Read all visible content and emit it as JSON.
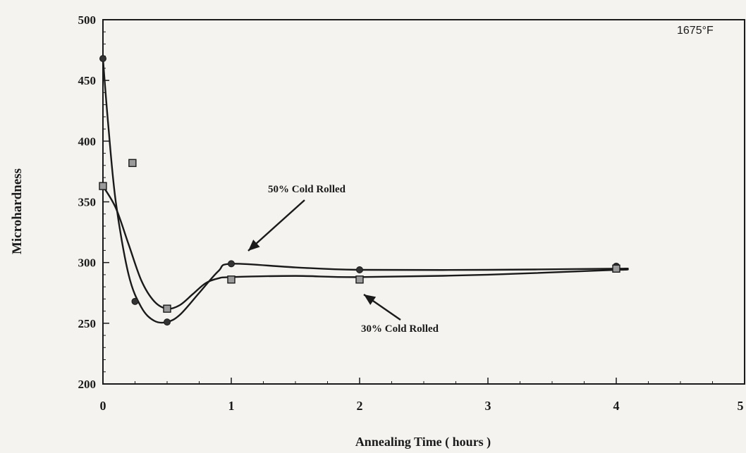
{
  "chart_data": {
    "type": "line",
    "annotation_temp": "1675°F",
    "xlabel": "Annealing Time ( hours )",
    "ylabel": "Microhardness",
    "xlim": [
      0,
      5
    ],
    "ylim": [
      200,
      500
    ],
    "x_ticks": [
      0,
      1,
      2,
      3,
      4,
      5
    ],
    "y_ticks": [
      200,
      250,
      300,
      350,
      400,
      450,
      500
    ],
    "grid": false,
    "series": [
      {
        "name": "50% Cold Rolled",
        "marker": "diamond",
        "x": [
          0,
          0.25,
          0.5,
          1,
          2,
          4
        ],
        "y": [
          468,
          268,
          251,
          299,
          294,
          297
        ],
        "curve_x": [
          0,
          0.04,
          0.1,
          0.2,
          0.3,
          0.4,
          0.5,
          0.6,
          0.75,
          0.9,
          1,
          1.5,
          2,
          3,
          4,
          4.05
        ],
        "curve_y": [
          468,
          415,
          350,
          290,
          263,
          252,
          251,
          257,
          275,
          293,
          299,
          296,
          294,
          294,
          295,
          295
        ]
      },
      {
        "name": "30% Cold Rolled",
        "marker": "square",
        "x": [
          0,
          0.23,
          0.5,
          1,
          2,
          4
        ],
        "y": [
          363,
          382,
          262,
          286,
          286,
          295
        ],
        "curve_x": [
          0,
          0.1,
          0.2,
          0.3,
          0.4,
          0.5,
          0.6,
          0.7,
          0.8,
          0.9,
          1,
          1.5,
          2,
          3,
          4,
          4.05
        ],
        "curve_y": [
          363,
          345,
          315,
          285,
          268,
          262,
          265,
          274,
          283,
          287,
          288,
          289,
          288,
          290,
          294,
          294
        ]
      }
    ],
    "annotations": [
      {
        "text": "50% Cold Rolled",
        "series": 0
      },
      {
        "text": "30% Cold Rolled",
        "series": 1
      }
    ]
  }
}
